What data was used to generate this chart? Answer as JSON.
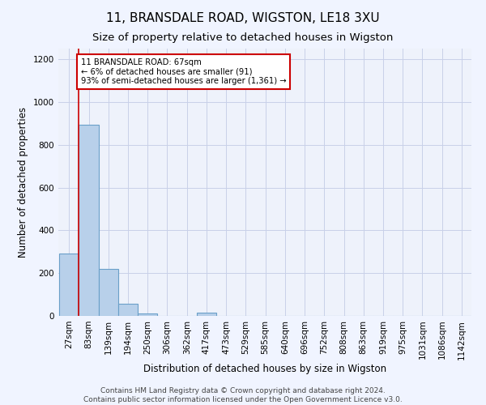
{
  "title_line1": "11, BRANSDALE ROAD, WIGSTON, LE18 3XU",
  "title_line2": "Size of property relative to detached houses in Wigston",
  "xlabel": "Distribution of detached houses by size in Wigston",
  "ylabel": "Number of detached properties",
  "bar_labels": [
    "27sqm",
    "83sqm",
    "139sqm",
    "194sqm",
    "250sqm",
    "306sqm",
    "362sqm",
    "417sqm",
    "473sqm",
    "529sqm",
    "585sqm",
    "640sqm",
    "696sqm",
    "752sqm",
    "808sqm",
    "863sqm",
    "919sqm",
    "975sqm",
    "1031sqm",
    "1086sqm",
    "1142sqm"
  ],
  "bar_values": [
    290,
    895,
    220,
    55,
    13,
    0,
    0,
    15,
    0,
    0,
    0,
    0,
    0,
    0,
    0,
    0,
    0,
    0,
    0,
    0,
    0
  ],
  "bar_color": "#b8d0ea",
  "bar_edge_color": "#6a9fc8",
  "annotation_box_text": "11 BRANSDALE ROAD: 67sqm\n← 6% of detached houses are smaller (91)\n93% of semi-detached houses are larger (1,361) →",
  "annotation_box_color": "#ffffff",
  "annotation_box_edgecolor": "#cc0000",
  "ylim": [
    0,
    1250
  ],
  "yticks": [
    0,
    200,
    400,
    600,
    800,
    1000,
    1200
  ],
  "footer_line1": "Contains HM Land Registry data © Crown copyright and database right 2024.",
  "footer_line2": "Contains public sector information licensed under the Open Government Licence v3.0.",
  "background_color": "#eef2fb",
  "grid_color": "#c8d0e8",
  "title_fontsize": 11,
  "subtitle_fontsize": 9.5,
  "axis_label_fontsize": 8.5,
  "tick_fontsize": 7.5,
  "footer_fontsize": 6.5
}
